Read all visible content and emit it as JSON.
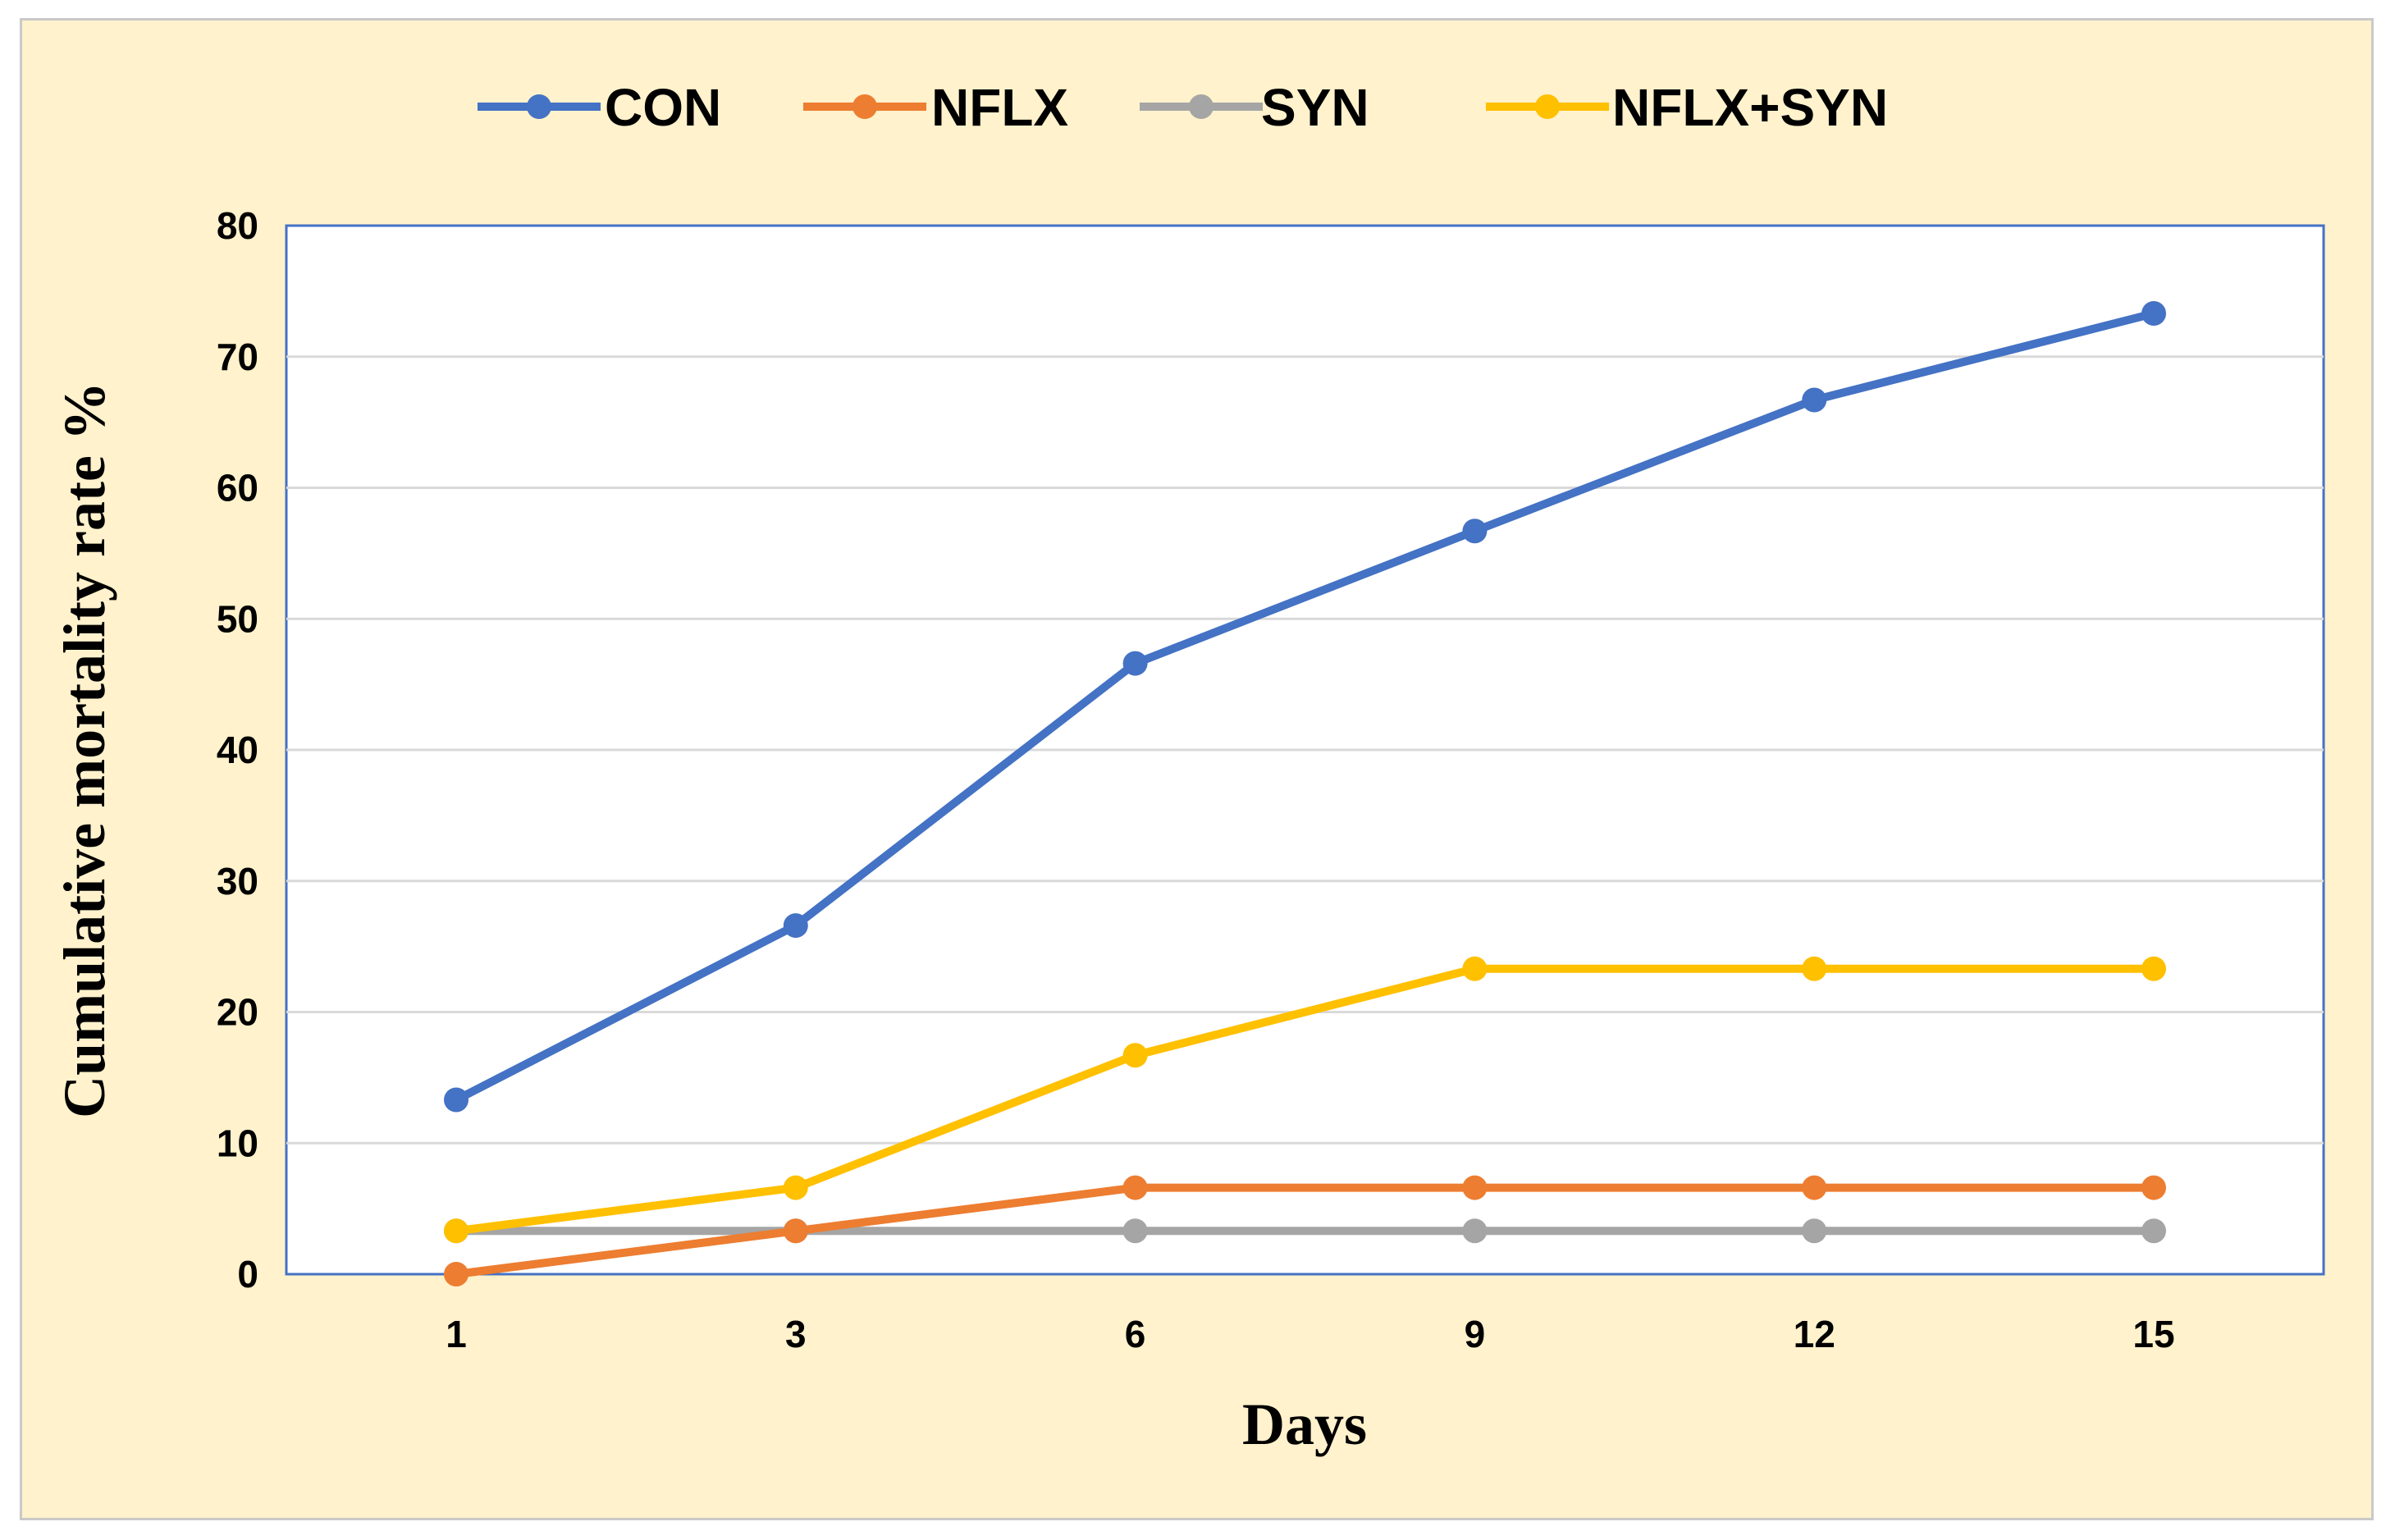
{
  "chart_data": {
    "type": "line",
    "title": "",
    "xlabel": "Days",
    "ylabel": "Cumulative  mortality  rate %",
    "categories": [
      "1",
      "3",
      "6",
      "9",
      "12",
      "15"
    ],
    "ylim": [
      0,
      80
    ],
    "yticks": [
      0,
      10,
      20,
      30,
      40,
      50,
      60,
      70,
      80
    ],
    "grid": true,
    "legend_position": "top-center",
    "series": [
      {
        "name": "CON",
        "color": "#4472c4",
        "values": [
          13.3,
          26.6,
          46.6,
          56.7,
          66.7,
          73.3
        ]
      },
      {
        "name": "NFLX",
        "color": "#ed7d31",
        "values": [
          0,
          3.3,
          6.6,
          6.6,
          6.6,
          6.6
        ]
      },
      {
        "name": "SYN",
        "color": "#a5a5a5",
        "values": [
          3.3,
          3.3,
          3.3,
          3.3,
          3.3,
          3.3
        ]
      },
      {
        "name": "NFLX+SYN",
        "color": "#ffc000",
        "values": [
          3.3,
          6.6,
          16.7,
          23.3,
          23.3,
          23.3
        ]
      }
    ]
  }
}
